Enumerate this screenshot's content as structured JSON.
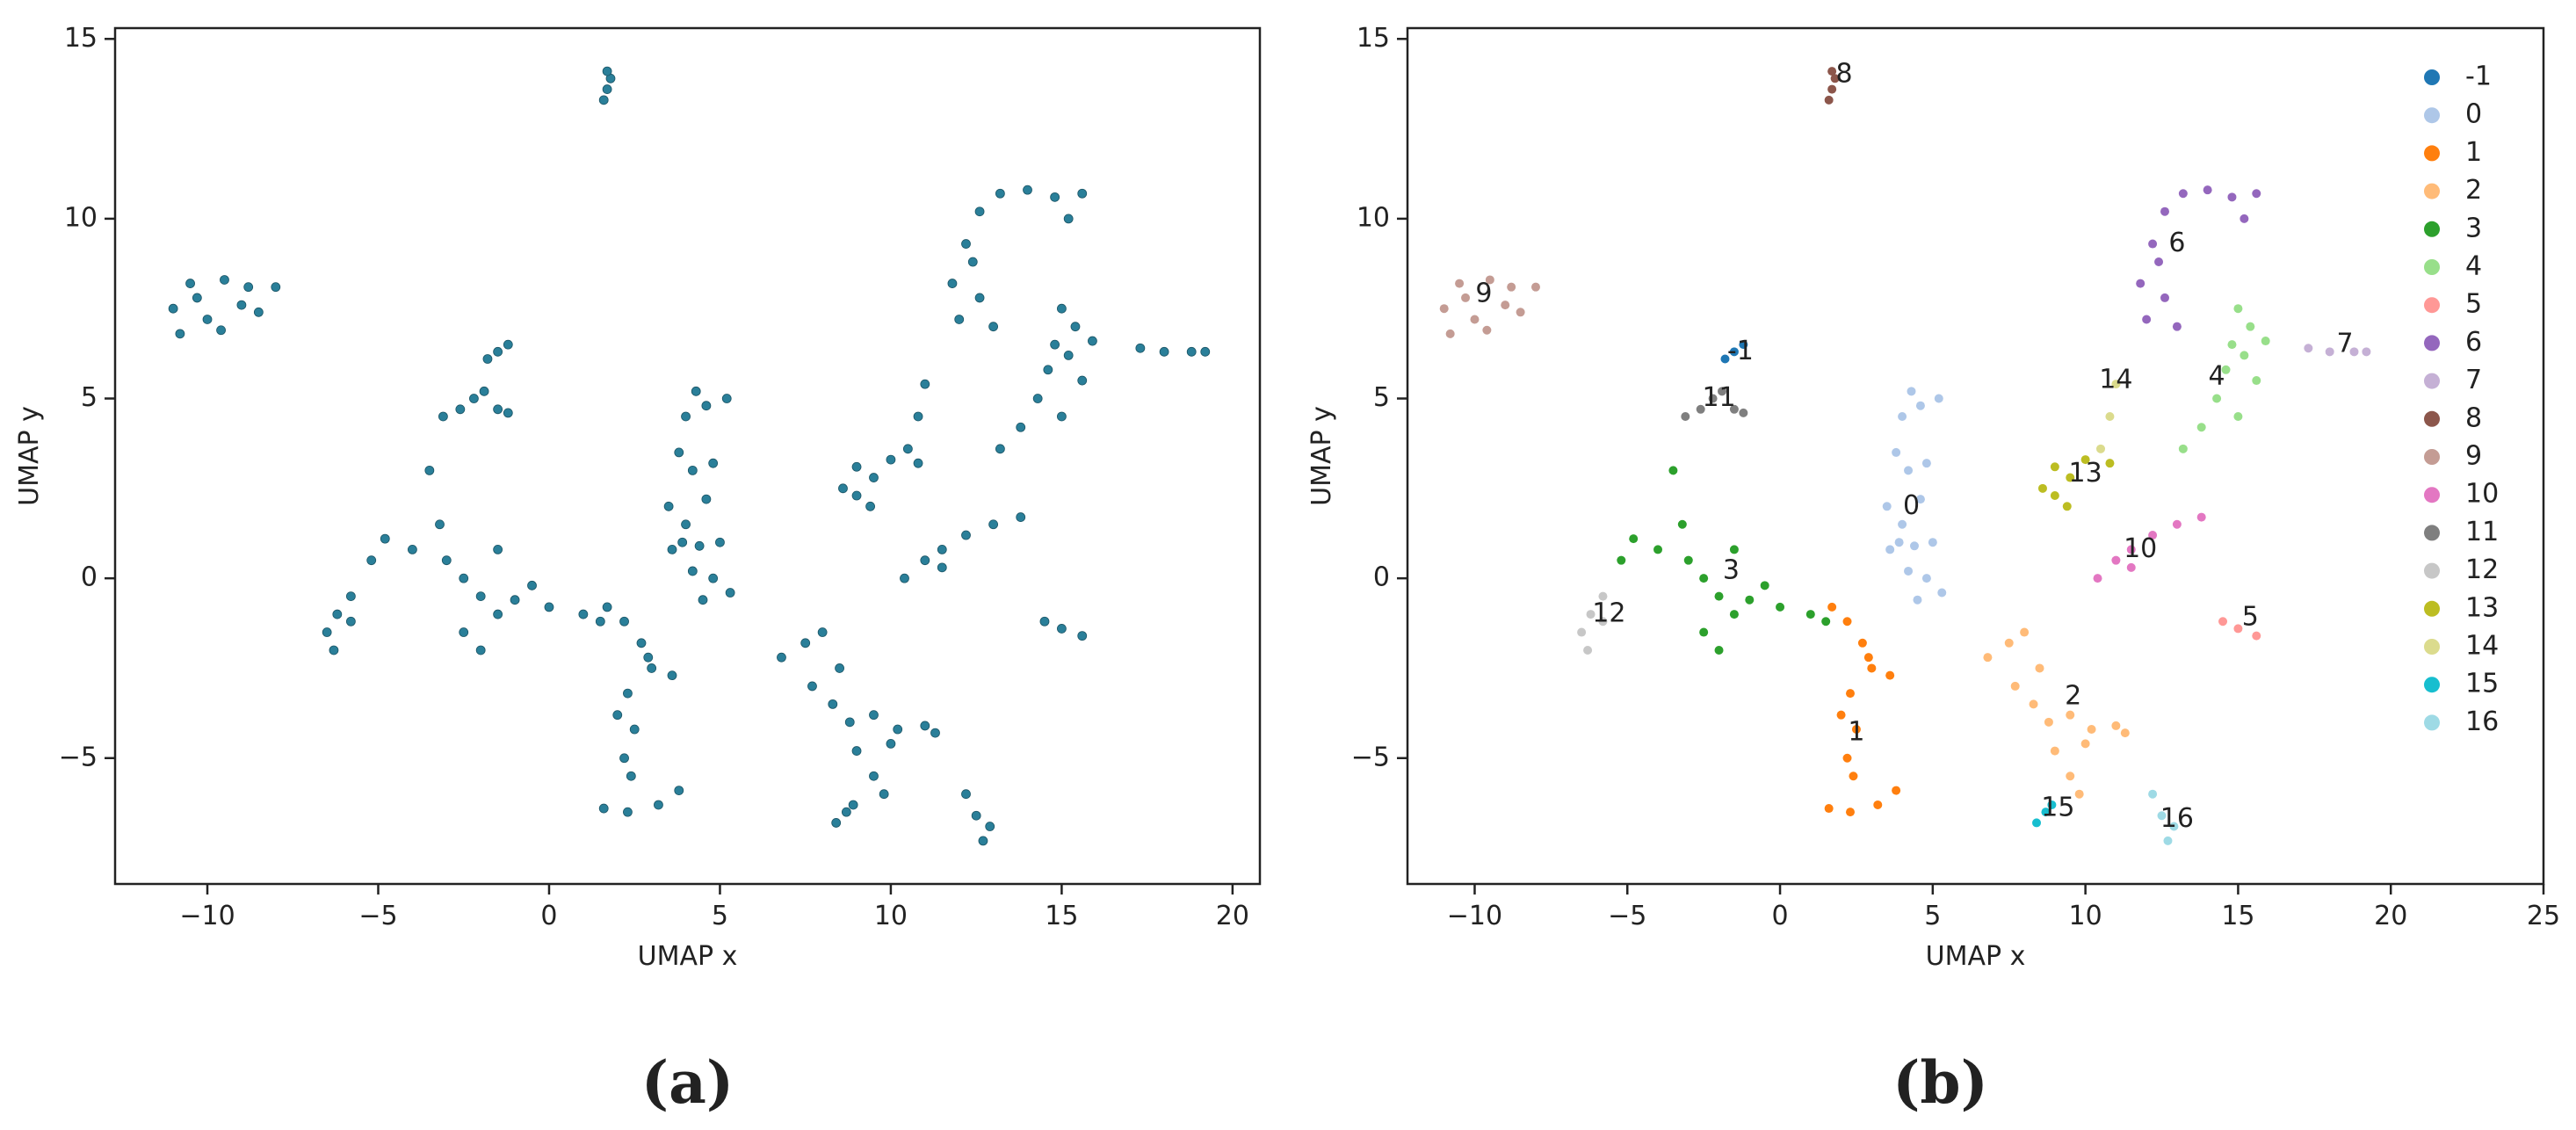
{
  "chart_data": [
    {
      "type": "scatter",
      "caption": "(a)",
      "xlabel": "UMAP x",
      "ylabel": "UMAP y",
      "xlim": [
        -12.7,
        20.8
      ],
      "ylim": [
        -8.5,
        15.3
      ],
      "xticks": [
        {
          "value": -10,
          "label": "−10"
        },
        {
          "value": -5,
          "label": "−5"
        },
        0,
        5,
        10,
        15,
        20
      ],
      "yticks": [
        {
          "value": -5,
          "label": "−5"
        },
        0,
        5,
        10,
        15
      ],
      "series": [
        {
          "color": "#2a7f99",
          "x": [
            -1.8,
            -1.5,
            -1.2,
            4.3,
            4.0,
            4.6,
            5.2,
            3.8,
            4.2,
            4.8,
            3.5,
            4.0,
            4.6,
            5.0,
            3.6,
            4.2,
            4.8,
            5.3,
            4.5,
            3.9,
            4.4,
            2.2,
            2.7,
            3.0,
            3.6,
            2.3,
            2.0,
            2.5,
            2.2,
            2.4,
            1.6,
            2.3,
            3.2,
            3.8,
            2.9,
            1.7,
            6.8,
            7.5,
            7.7,
            8.3,
            8.8,
            9.5,
            10.2,
            11.0,
            11.3,
            10.0,
            9.0,
            8.0,
            8.5,
            9.5,
            9.8,
            -3.5,
            -3.2,
            -4.0,
            -4.8,
            -5.2,
            -3.0,
            -2.5,
            -2.0,
            -1.5,
            -1.0,
            0.0,
            1.0,
            -2.0,
            -2.5,
            -1.5,
            -0.5,
            1.5,
            13.2,
            13.8,
            14.3,
            14.6,
            14.8,
            15.0,
            15.4,
            15.6,
            15.0,
            15.2,
            15.9,
            14.5,
            15.0,
            15.6,
            12.2,
            12.6,
            13.2,
            14.0,
            14.8,
            15.2,
            15.6,
            11.8,
            12.0,
            12.6,
            13.0,
            12.4,
            17.3,
            18.0,
            18.8,
            19.2,
            1.6,
            1.7,
            1.8,
            1.7,
            -10.8,
            -11.0,
            -10.5,
            -9.5,
            -8.8,
            -8.0,
            -9.0,
            -10.0,
            -9.6,
            -8.5,
            -10.3,
            10.4,
            11.0,
            11.5,
            12.2,
            13.0,
            13.8,
            11.5,
            -3.1,
            -2.6,
            -2.2,
            -1.9,
            -1.5,
            -1.2,
            -5.8,
            -6.2,
            -6.5,
            -6.3,
            -5.8,
            8.6,
            9.0,
            9.5,
            9.4,
            10.0,
            10.8,
            9.0,
            10.5,
            10.8,
            11.0,
            8.4,
            8.7,
            8.9,
            12.2,
            12.5,
            12.7,
            12.9
          ],
          "y": [
            6.1,
            6.3,
            6.5,
            5.2,
            4.5,
            4.8,
            5.0,
            3.5,
            3.0,
            3.2,
            2.0,
            1.5,
            2.2,
            1.0,
            0.8,
            0.2,
            0.0,
            -0.4,
            -0.6,
            1.0,
            0.9,
            -1.2,
            -1.8,
            -2.5,
            -2.7,
            -3.2,
            -3.8,
            -4.2,
            -5.0,
            -5.5,
            -6.4,
            -6.5,
            -6.3,
            -5.9,
            -2.2,
            -0.8,
            -2.2,
            -1.8,
            -3.0,
            -3.5,
            -4.0,
            -3.8,
            -4.2,
            -4.1,
            -4.3,
            -4.6,
            -4.8,
            -1.5,
            -2.5,
            -5.5,
            -6.0,
            3.0,
            1.5,
            0.8,
            1.1,
            0.5,
            0.5,
            0.0,
            -0.5,
            -1.0,
            -0.6,
            -0.8,
            -1.0,
            -2.0,
            -1.5,
            0.8,
            -0.2,
            -1.2,
            3.6,
            4.2,
            5.0,
            5.8,
            6.5,
            7.5,
            7.0,
            5.5,
            4.5,
            6.2,
            6.6,
            -1.2,
            -1.4,
            -1.6,
            9.3,
            10.2,
            10.7,
            10.8,
            10.6,
            10.0,
            10.7,
            8.2,
            7.2,
            7.8,
            7.0,
            8.8,
            6.4,
            6.3,
            6.3,
            6.3,
            13.3,
            13.6,
            13.9,
            14.1,
            6.8,
            7.5,
            8.2,
            8.3,
            8.1,
            8.1,
            7.6,
            7.2,
            6.9,
            7.4,
            7.8,
            0.0,
            0.5,
            0.8,
            1.2,
            1.5,
            1.7,
            0.3,
            4.5,
            4.7,
            5.0,
            5.2,
            4.7,
            4.6,
            -0.5,
            -1.0,
            -1.5,
            -2.0,
            -1.2,
            2.5,
            3.1,
            2.8,
            2.0,
            3.3,
            3.2,
            2.3,
            3.6,
            4.5,
            5.4,
            -6.8,
            -6.5,
            -6.3,
            -6.0,
            -6.6,
            -7.3,
            -6.9
          ]
        }
      ]
    },
    {
      "type": "scatter",
      "caption": "(b)",
      "xlabel": "UMAP x",
      "ylabel": "UMAP y",
      "xlim": [
        -12.2,
        25
      ],
      "ylim": [
        -8.5,
        15.3
      ],
      "legend": "upper right",
      "xticks": [
        {
          "value": -10,
          "label": "−10"
        },
        {
          "value": -5,
          "label": "−5"
        },
        0,
        5,
        10,
        15,
        20,
        25
      ],
      "yticks": [
        {
          "value": -5,
          "label": "−5"
        },
        0,
        5,
        10,
        15
      ],
      "series": [
        {
          "name": "-1",
          "color": "#1f77b4",
          "x": [
            -1.8,
            -1.5,
            -1.2
          ],
          "y": [
            6.1,
            6.3,
            6.5
          ]
        },
        {
          "name": "0",
          "color": "#aec7e8",
          "x": [
            4.3,
            4.0,
            4.6,
            5.2,
            3.8,
            4.2,
            4.8,
            3.5,
            4.0,
            4.6,
            5.0,
            3.6,
            4.2,
            4.8,
            5.3,
            4.5,
            3.9,
            4.4
          ],
          "y": [
            5.2,
            4.5,
            4.8,
            5.0,
            3.5,
            3.0,
            3.2,
            2.0,
            1.5,
            2.2,
            1.0,
            0.8,
            0.2,
            0.0,
            -0.4,
            -0.6,
            1.0,
            0.9
          ]
        },
        {
          "name": "1",
          "color": "#ff7f0e",
          "x": [
            2.2,
            2.7,
            3.0,
            3.6,
            2.3,
            2.0,
            2.5,
            2.2,
            2.4,
            1.6,
            2.3,
            3.2,
            3.8,
            2.9,
            1.7
          ],
          "y": [
            -1.2,
            -1.8,
            -2.5,
            -2.7,
            -3.2,
            -3.8,
            -4.2,
            -5.0,
            -5.5,
            -6.4,
            -6.5,
            -6.3,
            -5.9,
            -2.2,
            -0.8
          ]
        },
        {
          "name": "2",
          "color": "#ffbb78",
          "x": [
            6.8,
            7.5,
            7.7,
            8.3,
            8.8,
            9.5,
            10.2,
            11.0,
            11.3,
            10.0,
            9.0,
            8.0,
            8.5,
            9.5,
            9.8
          ],
          "y": [
            -2.2,
            -1.8,
            -3.0,
            -3.5,
            -4.0,
            -3.8,
            -4.2,
            -4.1,
            -4.3,
            -4.6,
            -4.8,
            -1.5,
            -2.5,
            -5.5,
            -6.0
          ]
        },
        {
          "name": "3",
          "color": "#2ca02c",
          "x": [
            -3.5,
            -3.2,
            -4.0,
            -4.8,
            -5.2,
            -3.0,
            -2.5,
            -2.0,
            -1.5,
            -1.0,
            0.0,
            1.0,
            -2.0,
            -2.5,
            -1.5,
            -0.5,
            1.5
          ],
          "y": [
            3.0,
            1.5,
            0.8,
            1.1,
            0.5,
            0.5,
            0.0,
            -0.5,
            -1.0,
            -0.6,
            -0.8,
            -1.0,
            -2.0,
            -1.5,
            0.8,
            -0.2,
            -1.2
          ]
        },
        {
          "name": "4",
          "color": "#98df8a",
          "x": [
            13.2,
            13.8,
            14.3,
            14.6,
            14.8,
            15.0,
            15.4,
            15.6,
            15.0,
            15.2,
            15.9
          ],
          "y": [
            3.6,
            4.2,
            5.0,
            5.8,
            6.5,
            7.5,
            7.0,
            5.5,
            4.5,
            6.2,
            6.6
          ]
        },
        {
          "name": "5",
          "color": "#ff9896",
          "x": [
            14.5,
            15.0,
            15.6
          ],
          "y": [
            -1.2,
            -1.4,
            -1.6
          ]
        },
        {
          "name": "6",
          "color": "#9467bd",
          "x": [
            12.2,
            12.6,
            13.2,
            14.0,
            14.8,
            15.2,
            15.6,
            11.8,
            12.0,
            12.6,
            13.0,
            12.4
          ],
          "y": [
            9.3,
            10.2,
            10.7,
            10.8,
            10.6,
            10.0,
            10.7,
            8.2,
            7.2,
            7.8,
            7.0,
            8.8
          ]
        },
        {
          "name": "7",
          "color": "#c5b0d5",
          "x": [
            17.3,
            18.0,
            18.8,
            19.2
          ],
          "y": [
            6.4,
            6.3,
            6.3,
            6.3
          ]
        },
        {
          "name": "8",
          "color": "#8c564b",
          "x": [
            1.6,
            1.7,
            1.8,
            1.7
          ],
          "y": [
            13.3,
            13.6,
            13.9,
            14.1
          ]
        },
        {
          "name": "9",
          "color": "#c49c94",
          "x": [
            -10.8,
            -11.0,
            -10.5,
            -9.5,
            -8.8,
            -8.0,
            -9.0,
            -10.0,
            -9.6,
            -8.5,
            -10.3
          ],
          "y": [
            6.8,
            7.5,
            8.2,
            8.3,
            8.1,
            8.1,
            7.6,
            7.2,
            6.9,
            7.4,
            7.8
          ]
        },
        {
          "name": "10",
          "color": "#e377c2",
          "x": [
            10.4,
            11.0,
            11.5,
            12.2,
            13.0,
            13.8,
            11.5
          ],
          "y": [
            0.0,
            0.5,
            0.8,
            1.2,
            1.5,
            1.7,
            0.3
          ]
        },
        {
          "name": "11",
          "color": "#7f7f7f",
          "x": [
            -3.1,
            -2.6,
            -2.2,
            -1.9,
            -1.5,
            -1.2
          ],
          "y": [
            4.5,
            4.7,
            5.0,
            5.2,
            4.7,
            4.6
          ]
        },
        {
          "name": "12",
          "color": "#c7c7c7",
          "x": [
            -5.8,
            -6.2,
            -6.5,
            -6.3,
            -5.8
          ],
          "y": [
            -0.5,
            -1.0,
            -1.5,
            -2.0,
            -1.2
          ]
        },
        {
          "name": "13",
          "color": "#bcbd22",
          "x": [
            8.6,
            9.0,
            9.5,
            9.4,
            10.0,
            10.8,
            9.0
          ],
          "y": [
            2.5,
            3.1,
            2.8,
            2.0,
            3.3,
            3.2,
            2.3
          ]
        },
        {
          "name": "14",
          "color": "#dbdb8d",
          "x": [
            10.5,
            10.8,
            11.0
          ],
          "y": [
            3.6,
            4.5,
            5.4
          ]
        },
        {
          "name": "15",
          "color": "#17becf",
          "x": [
            8.4,
            8.7,
            8.9
          ],
          "y": [
            -6.8,
            -6.5,
            -6.3
          ]
        },
        {
          "name": "16",
          "color": "#9edae5",
          "x": [
            12.2,
            12.5,
            12.7,
            12.9
          ],
          "y": [
            -6.0,
            -6.6,
            -7.3,
            -6.9
          ]
        }
      ],
      "annotations": [
        {
          "text": "-1",
          "x": -1.3,
          "y": 6.3
        },
        {
          "text": "0",
          "x": 4.3,
          "y": 2.0
        },
        {
          "text": "1",
          "x": 2.5,
          "y": -4.3
        },
        {
          "text": "2",
          "x": 9.6,
          "y": -3.3
        },
        {
          "text": "3",
          "x": -1.6,
          "y": 0.2
        },
        {
          "text": "4",
          "x": 14.3,
          "y": 5.6
        },
        {
          "text": "5",
          "x": 15.4,
          "y": -1.1
        },
        {
          "text": "6",
          "x": 13.0,
          "y": 9.3
        },
        {
          "text": "7",
          "x": 18.5,
          "y": 6.5
        },
        {
          "text": "8",
          "x": 2.1,
          "y": 14.0
        },
        {
          "text": "9",
          "x": -9.7,
          "y": 7.9
        },
        {
          "text": "10",
          "x": 11.8,
          "y": 0.8
        },
        {
          "text": "11",
          "x": -2.0,
          "y": 5.0
        },
        {
          "text": "12",
          "x": -5.6,
          "y": -1.0
        },
        {
          "text": "13",
          "x": 10.0,
          "y": 2.9
        },
        {
          "text": "14",
          "x": 11.0,
          "y": 5.5
        },
        {
          "text": "15",
          "x": 9.1,
          "y": -6.4
        },
        {
          "text": "16",
          "x": 13.0,
          "y": -6.7
        }
      ]
    }
  ]
}
